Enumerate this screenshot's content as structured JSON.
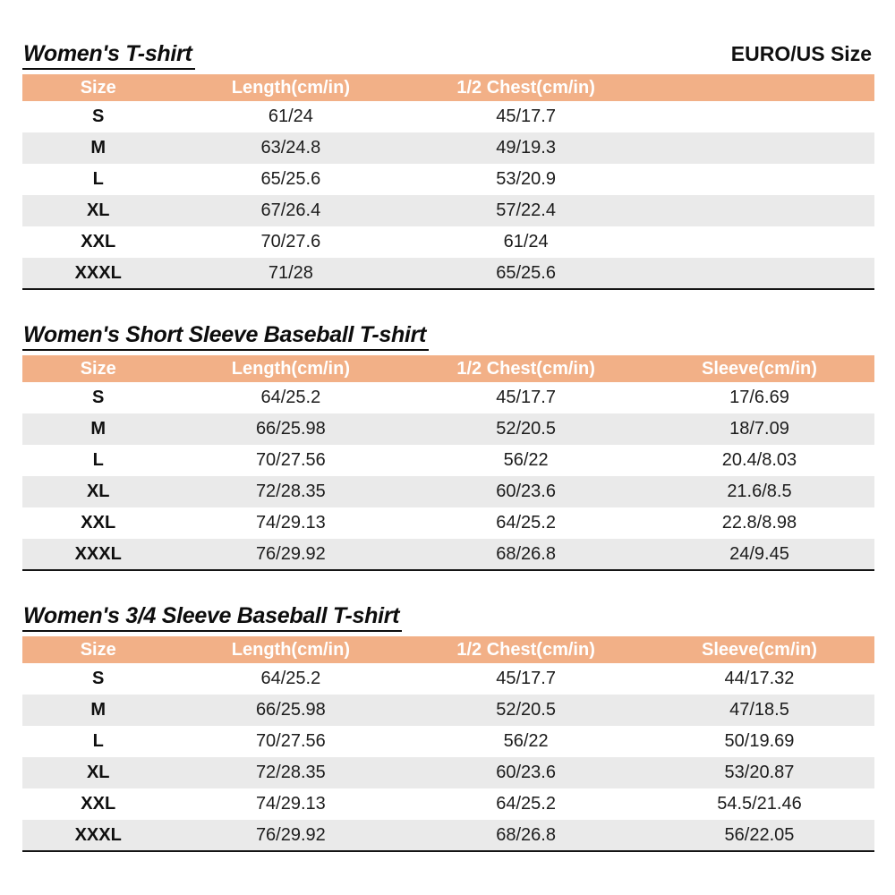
{
  "page": {
    "corner_label": "EURO/US Size"
  },
  "colors": {
    "header_bg": "#F2B087",
    "header_text": "#FFFFFF",
    "stripe_bg": "#EAEAEA",
    "text": "#1C1C1C"
  },
  "tables": [
    {
      "title": "Women's T-shirt",
      "columns": [
        "Size",
        "Length(cm/in)",
        "1/2 Chest(cm/in)"
      ],
      "rows": [
        [
          "S",
          "61/24",
          "45/17.7"
        ],
        [
          "M",
          "63/24.8",
          "49/19.3"
        ],
        [
          "L",
          "65/25.6",
          "53/20.9"
        ],
        [
          "XL",
          "67/26.4",
          "57/22.4"
        ],
        [
          "XXL",
          "70/27.6",
          "61/24"
        ],
        [
          "XXXL",
          "71/28",
          "65/25.6"
        ]
      ]
    },
    {
      "title": "Women's Short Sleeve Baseball T-shirt",
      "columns": [
        "Size",
        "Length(cm/in)",
        "1/2 Chest(cm/in)",
        "Sleeve(cm/in)"
      ],
      "rows": [
        [
          "S",
          "64/25.2",
          "45/17.7",
          "17/6.69"
        ],
        [
          "M",
          "66/25.98",
          "52/20.5",
          "18/7.09"
        ],
        [
          "L",
          "70/27.56",
          "56/22",
          "20.4/8.03"
        ],
        [
          "XL",
          "72/28.35",
          "60/23.6",
          "21.6/8.5"
        ],
        [
          "XXL",
          "74/29.13",
          "64/25.2",
          "22.8/8.98"
        ],
        [
          "XXXL",
          "76/29.92",
          "68/26.8",
          "24/9.45"
        ]
      ]
    },
    {
      "title": "Women's 3/4 Sleeve Baseball T-shirt",
      "columns": [
        "Size",
        "Length(cm/in)",
        "1/2 Chest(cm/in)",
        "Sleeve(cm/in)"
      ],
      "rows": [
        [
          "S",
          "64/25.2",
          "45/17.7",
          "44/17.32"
        ],
        [
          "M",
          "66/25.98",
          "52/20.5",
          "47/18.5"
        ],
        [
          "L",
          "70/27.56",
          "56/22",
          "50/19.69"
        ],
        [
          "XL",
          "72/28.35",
          "60/23.6",
          "53/20.87"
        ],
        [
          "XXL",
          "74/29.13",
          "64/25.2",
          "54.5/21.46"
        ],
        [
          "XXXL",
          "76/29.92",
          "68/26.8",
          "56/22.05"
        ]
      ]
    }
  ]
}
